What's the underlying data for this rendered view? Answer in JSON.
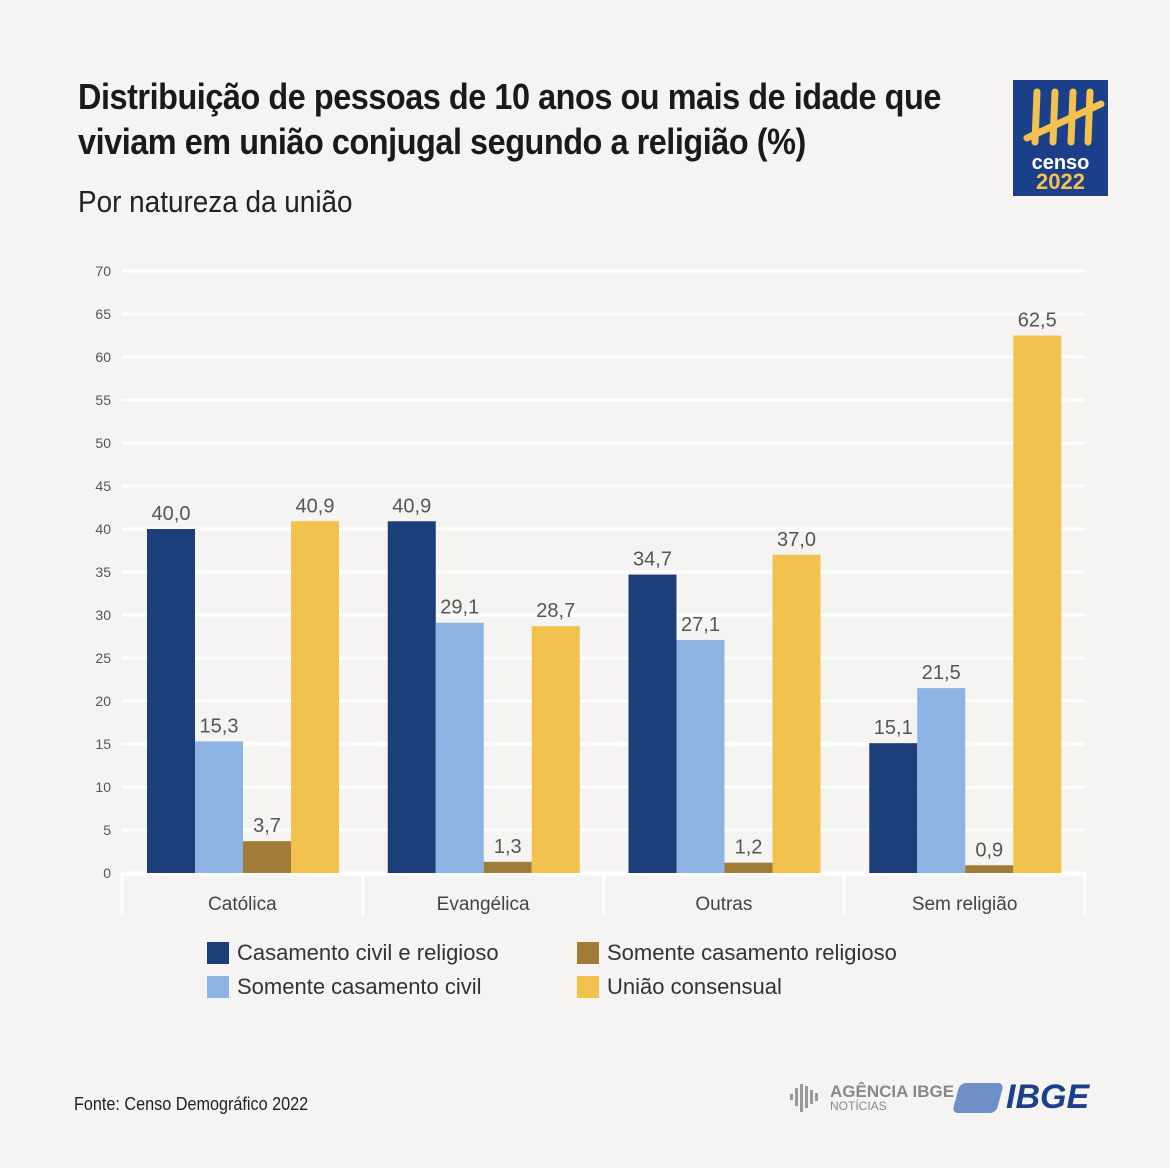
{
  "header": {
    "title": "Distribuição de pessoas de 10 anos ou mais de idade que viviam em união conjugal segundo a religião (%)",
    "subtitle": "Por natureza da união",
    "logo_text": [
      "censo",
      "2022"
    ]
  },
  "footer": {
    "source": "Fonte: Censo Demográfico 2022",
    "agencia_logo": [
      "AGÊNCIA IBGE",
      "NOTÍCIAS"
    ],
    "ibge_logo": "IBGE"
  },
  "chart_data": {
    "type": "bar",
    "title": "Distribuição de pessoas de 10 anos ou mais de idade que viviam em união conjugal segundo a religião (%)",
    "subtitle": "Por natureza da união",
    "xlabel": "",
    "ylabel": "",
    "categories": [
      "Católica",
      "Evangélica",
      "Outras",
      "Sem religião"
    ],
    "ylim": [
      0,
      70
    ],
    "yticks": [
      0,
      5,
      10,
      15,
      20,
      25,
      30,
      35,
      40,
      45,
      50,
      55,
      60,
      65,
      70
    ],
    "grid": true,
    "legend_position": "bottom",
    "series": [
      {
        "name": "Casamento civil e religioso",
        "color": "#1c3f7a",
        "values": [
          40.0,
          40.9,
          34.7,
          15.1
        ],
        "labels": [
          "40,0",
          "40,9",
          "34,7",
          "15,1"
        ]
      },
      {
        "name": "Somente casamento civil",
        "color": "#8db4e2",
        "values": [
          15.3,
          29.1,
          27.1,
          21.5
        ],
        "labels": [
          "15,3",
          "29,1",
          "27,1",
          "21,5"
        ]
      },
      {
        "name": "Somente casamento religioso",
        "color": "#a07c36",
        "values": [
          3.7,
          1.3,
          1.2,
          0.9
        ],
        "labels": [
          "3,7",
          "1,3",
          "1,2",
          "0,9"
        ]
      },
      {
        "name": "União consensual",
        "color": "#f2c14e",
        "values": [
          40.9,
          28.7,
          37.0,
          62.5
        ],
        "labels": [
          "40,9",
          "28,7",
          "37,0",
          "62,5"
        ]
      }
    ]
  }
}
